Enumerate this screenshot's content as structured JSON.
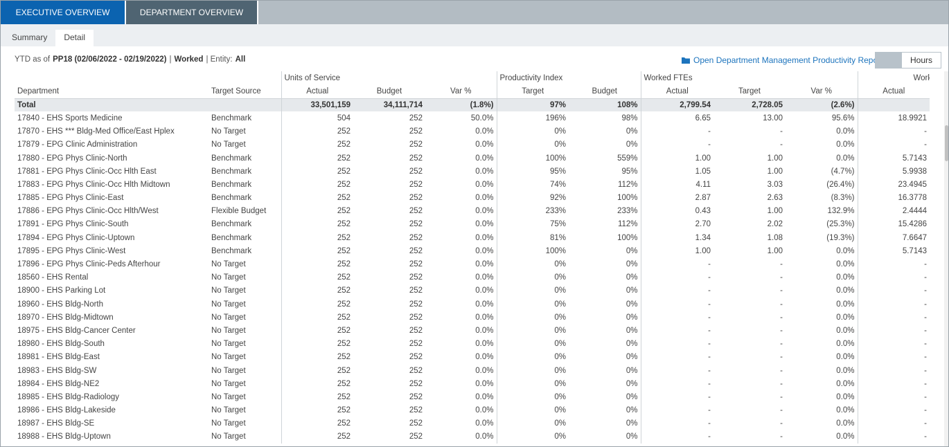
{
  "tabs": [
    "EXECUTIVE OVERVIEW",
    "DEPARTMENT OVERVIEW"
  ],
  "subtabs": [
    "Summary",
    "Detail"
  ],
  "info": [
    {
      "text": "YTD as of",
      "bold": false
    },
    {
      "text": "PP18 (02/06/2022 - 02/19/2022)",
      "bold": true
    },
    {
      "text": "|",
      "bold": false
    },
    {
      "text": "Worked",
      "bold": true
    },
    {
      "text": "| Entity:",
      "bold": false
    },
    {
      "text": "All",
      "bold": true
    }
  ],
  "report_link": "Open Department Management Productivity Report",
  "toggle": "Hours",
  "table": {
    "groups": [
      "Units of Service",
      "Productivity Index",
      "Worked FTEs",
      "Worke"
    ],
    "columns": [
      "Department",
      "Target Source",
      "Actual",
      "Budget",
      "Var %",
      "Target",
      "Budget",
      "Actual",
      "Target",
      "Var %",
      "Actual"
    ],
    "total": [
      "Total",
      null,
      "33,501,159",
      "34,111,714",
      "(1.8%)",
      "97%",
      "108%",
      "2,799.54",
      "2,728.05",
      "(2.6%)",
      null
    ],
    "rows": [
      [
        "17840 - EHS Sports Medicine",
        "Benchmark",
        "504",
        "252",
        "50.0%",
        "196%",
        "98%",
        "6.65",
        "13.00",
        "95.6%",
        "18.9921"
      ],
      [
        "17870 - EHS *** Bldg-Med Office/East Hplex",
        "No Target",
        "252",
        "252",
        "0.0%",
        "0%",
        "0%",
        "-",
        "-",
        "0.0%",
        "-"
      ],
      [
        "17879 - EPG Clinic Administration",
        "No Target",
        "252",
        "252",
        "0.0%",
        "0%",
        "0%",
        "-",
        "-",
        "0.0%",
        "-"
      ],
      [
        "17880 - EPG Phys Clinic-North",
        "Benchmark",
        "252",
        "252",
        "0.0%",
        "100%",
        "559%",
        "1.00",
        "1.00",
        "0.0%",
        "5.7143"
      ],
      [
        "17881 - EPG Phys Clinic-Occ Hlth East",
        "Benchmark",
        "252",
        "252",
        "0.0%",
        "95%",
        "95%",
        "1.05",
        "1.00",
        "(4.7%)",
        "5.9938"
      ],
      [
        "17883 - EPG Phys Clinic-Occ Hlth Midtown",
        "Benchmark",
        "252",
        "252",
        "0.0%",
        "74%",
        "112%",
        "4.11",
        "3.03",
        "(26.4%)",
        "23.4945"
      ],
      [
        "17885 - EPG Phys Clinic-East",
        "Benchmark",
        "252",
        "252",
        "0.0%",
        "92%",
        "100%",
        "2.87",
        "2.63",
        "(8.3%)",
        "16.3778"
      ],
      [
        "17886 - EPG Phys Clinic-Occ Hlth/West",
        "Flexible Budget",
        "252",
        "252",
        "0.0%",
        "233%",
        "233%",
        "0.43",
        "1.00",
        "132.9%",
        "2.4444"
      ],
      [
        "17891 - EPG Phys Clinic-South",
        "Benchmark",
        "252",
        "252",
        "0.0%",
        "75%",
        "112%",
        "2.70",
        "2.02",
        "(25.3%)",
        "15.4286"
      ],
      [
        "17894 - EPG Phys Clinic-Uptown",
        "Benchmark",
        "252",
        "252",
        "0.0%",
        "81%",
        "100%",
        "1.34",
        "1.08",
        "(19.3%)",
        "7.6647"
      ],
      [
        "17895 - EPG Phys Clinic-West",
        "Benchmark",
        "252",
        "252",
        "0.0%",
        "100%",
        "0%",
        "1.00",
        "1.00",
        "0.0%",
        "5.7143"
      ],
      [
        "17896 - EPG Phys Clinic-Peds Afterhour",
        "No Target",
        "252",
        "252",
        "0.0%",
        "0%",
        "0%",
        "-",
        "-",
        "0.0%",
        "-"
      ],
      [
        "18560 - EHS Rental",
        "No Target",
        "252",
        "252",
        "0.0%",
        "0%",
        "0%",
        "-",
        "-",
        "0.0%",
        "-"
      ],
      [
        "18900 - EHS Parking Lot",
        "No Target",
        "252",
        "252",
        "0.0%",
        "0%",
        "0%",
        "-",
        "-",
        "0.0%",
        "-"
      ],
      [
        "18960 - EHS Bldg-North",
        "No Target",
        "252",
        "252",
        "0.0%",
        "0%",
        "0%",
        "-",
        "-",
        "0.0%",
        "-"
      ],
      [
        "18970 - EHS Bldg-Midtown",
        "No Target",
        "252",
        "252",
        "0.0%",
        "0%",
        "0%",
        "-",
        "-",
        "0.0%",
        "-"
      ],
      [
        "18975 - EHS Bldg-Cancer Center",
        "No Target",
        "252",
        "252",
        "0.0%",
        "0%",
        "0%",
        "-",
        "-",
        "0.0%",
        "-"
      ],
      [
        "18980 - EHS Bldg-South",
        "No Target",
        "252",
        "252",
        "0.0%",
        "0%",
        "0%",
        "-",
        "-",
        "0.0%",
        "-"
      ],
      [
        "18981 - EHS Bldg-East",
        "No Target",
        "252",
        "252",
        "0.0%",
        "0%",
        "0%",
        "-",
        "-",
        "0.0%",
        "-"
      ],
      [
        "18983 - EHS Bldg-SW",
        "No Target",
        "252",
        "252",
        "0.0%",
        "0%",
        "0%",
        "-",
        "-",
        "0.0%",
        "-"
      ],
      [
        "18984 - EHS Bldg-NE2",
        "No Target",
        "252",
        "252",
        "0.0%",
        "0%",
        "0%",
        "-",
        "-",
        "0.0%",
        "-"
      ],
      [
        "18985 - EHS Bldg-Radiology",
        "No Target",
        "252",
        "252",
        "0.0%",
        "0%",
        "0%",
        "-",
        "-",
        "0.0%",
        "-"
      ],
      [
        "18986 - EHS Bldg-Lakeside",
        "No Target",
        "252",
        "252",
        "0.0%",
        "0%",
        "0%",
        "-",
        "-",
        "0.0%",
        "-"
      ],
      [
        "18987 - EHS Bldg-SE",
        "No Target",
        "252",
        "252",
        "0.0%",
        "0%",
        "0%",
        "-",
        "-",
        "0.0%",
        "-"
      ],
      [
        "18988 - EHS Bldg-Uptown",
        "No Target",
        "252",
        "252",
        "0.0%",
        "0%",
        "0%",
        "-",
        "-",
        "0.0%",
        "-"
      ]
    ]
  }
}
